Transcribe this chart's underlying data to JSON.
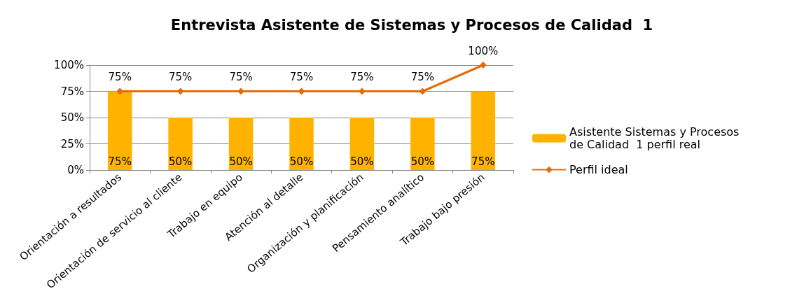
{
  "chart_data": {
    "type": "bar",
    "title": "Entrevista Asistente de Sistemas y Procesos de Calidad  1",
    "categories": [
      "Orientación a resultados",
      "Orientación de servicio al cliente",
      "Trabajo en equipo",
      "Atención al detalle",
      "Organización y planificación",
      "Pensamiento analítico",
      "Trabajo bajo presión"
    ],
    "series": [
      {
        "name": "Asistente Sistemas y Procesos de Calidad  1 perfil real",
        "color": "#ffb300",
        "values": [
          75,
          50,
          50,
          50,
          50,
          50,
          75
        ],
        "value_labels": [
          "75%",
          "50%",
          "50%",
          "50%",
          "50%",
          "50%",
          "75%"
        ]
      },
      {
        "name": "Perfil ideal",
        "type": "line",
        "color": "#e46c0a",
        "marker": "diamond",
        "values": [
          75,
          75,
          75,
          75,
          75,
          75,
          100
        ],
        "value_labels": [
          "75%",
          "75%",
          "75%",
          "75%",
          "75%",
          "75%",
          "100%"
        ]
      }
    ],
    "ylim": [
      0,
      100
    ],
    "yticks": [
      {
        "value": 0,
        "label": "0%"
      },
      {
        "value": 25,
        "label": "25%"
      },
      {
        "value": 50,
        "label": "50%"
      },
      {
        "value": 75,
        "label": "75%"
      },
      {
        "value": 100,
        "label": "100%"
      }
    ],
    "grid": "y",
    "legend": "right"
  }
}
